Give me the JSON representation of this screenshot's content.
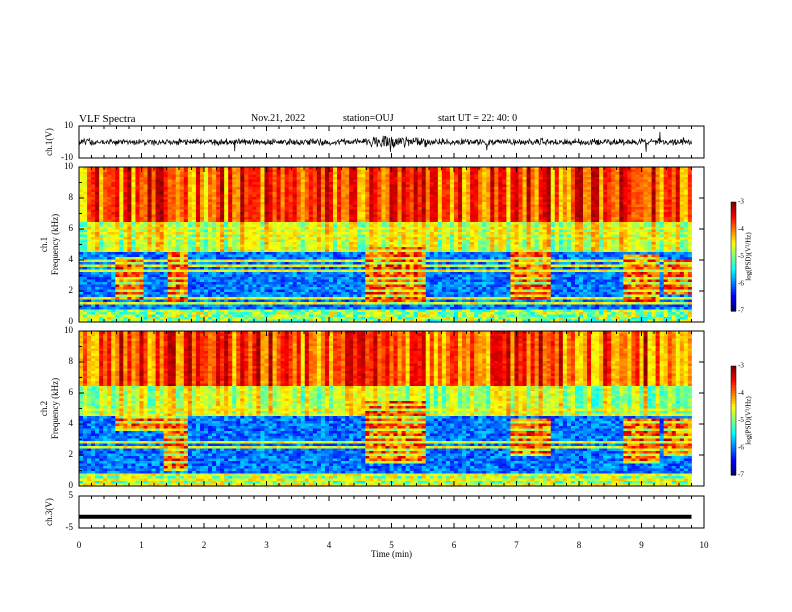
{
  "header": {
    "title": "VLF Spectra",
    "date": "Nov.21, 2022",
    "station": "station=OUJ",
    "start_ut": "start UT =  22: 40: 0"
  },
  "colors": {
    "background": "#ffffff",
    "axis": "#000000",
    "colormap": [
      "#00007f",
      "#0000ff",
      "#007fff",
      "#00ffff",
      "#7fff7f",
      "#ffff00",
      "#ff7f00",
      "#ff0000",
      "#7f0000"
    ]
  },
  "chart_data": [
    {
      "type": "line",
      "id": "ch1-waveform",
      "ylabel": "ch.1(V)",
      "yticks": [
        "10",
        "-10"
      ],
      "ylim": [
        -10,
        10
      ],
      "xlim": [
        0,
        10
      ],
      "baseline": 0,
      "description_note": ""
    },
    {
      "type": "heatmap",
      "id": "ch1-spectrogram",
      "ylabel": "ch.1\nFrequency (kHz)",
      "ylabel_line1": "ch.1",
      "ylabel_line2": "Frequency (kHz)",
      "yticks": [
        "0",
        "2",
        "4",
        "6",
        "8",
        "10"
      ],
      "ylim": [
        0,
        10
      ],
      "xlim": [
        0,
        10
      ],
      "colorbar": {
        "ticks": [
          "-3",
          "-4",
          "-5",
          "-6",
          "-7"
        ],
        "label": "log(PSD)(V²/Hz)",
        "range": [
          -7,
          -3
        ]
      },
      "bursts": [
        {
          "t": [
            0.55,
            1.0
          ],
          "f": [
            1.5,
            4.2
          ]
        },
        {
          "t": [
            1.4,
            1.75
          ],
          "f": [
            1.2,
            4.5
          ]
        },
        {
          "t": [
            4.55,
            5.55
          ],
          "f": [
            1.2,
            4.8
          ]
        },
        {
          "t": [
            6.9,
            7.55
          ],
          "f": [
            1.5,
            4.6
          ]
        },
        {
          "t": [
            8.7,
            9.3
          ],
          "f": [
            1.3,
            4.3
          ]
        },
        {
          "t": [
            9.35,
            9.8
          ],
          "f": [
            1.8,
            4.0
          ]
        }
      ]
    },
    {
      "type": "heatmap",
      "id": "ch2-spectrogram",
      "ylabel": "ch.2\nFrequency (kHz)",
      "ylabel_line1": "ch.2",
      "ylabel_line2": "Frequency (kHz)",
      "yticks": [
        "0",
        "2",
        "4",
        "6",
        "8",
        "10"
      ],
      "ylim": [
        0,
        10
      ],
      "xlim": [
        0,
        10
      ],
      "colorbar": {
        "ticks": [
          "-3",
          "-4",
          "-5",
          "-6",
          "-7"
        ],
        "label": "log(PSD)(V²/Hz)",
        "range": [
          -7,
          -3
        ]
      },
      "bursts": [
        {
          "t": [
            0.55,
            1.6
          ],
          "f": [
            3.5,
            4.5
          ]
        },
        {
          "t": [
            1.35,
            1.75
          ],
          "f": [
            1.0,
            4.5
          ]
        },
        {
          "t": [
            4.55,
            5.55
          ],
          "f": [
            1.4,
            5.5
          ]
        },
        {
          "t": [
            6.9,
            7.55
          ],
          "f": [
            2.0,
            4.4
          ]
        },
        {
          "t": [
            8.7,
            9.3
          ],
          "f": [
            1.5,
            4.3
          ]
        },
        {
          "t": [
            9.35,
            9.8
          ],
          "f": [
            2.0,
            4.3
          ]
        }
      ]
    },
    {
      "type": "line",
      "id": "ch3-trace",
      "ylabel": "ch.3(V)",
      "yticks": [
        "5",
        "-5"
      ],
      "ylim": [
        -5,
        5
      ],
      "xlim": [
        0,
        10
      ],
      "value": -1.5,
      "xlabel": "Time (min)",
      "xticks": [
        "0",
        "1",
        "2",
        "3",
        "4",
        "5",
        "6",
        "7",
        "8",
        "9",
        "10"
      ],
      "data_end": 9.8
    }
  ]
}
